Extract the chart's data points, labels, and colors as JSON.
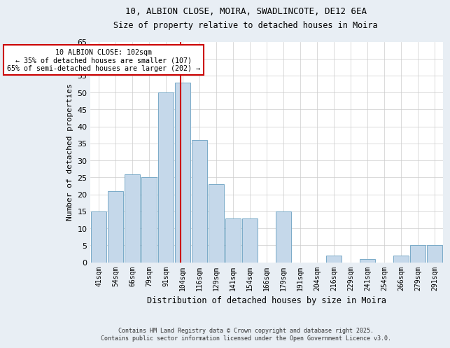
{
  "title_line1": "10, ALBION CLOSE, MOIRA, SWADLINCOTE, DE12 6EA",
  "title_line2": "Size of property relative to detached houses in Moira",
  "xlabel": "Distribution of detached houses by size in Moira",
  "ylabel": "Number of detached properties",
  "categories": [
    "41sqm",
    "54sqm",
    "66sqm",
    "79sqm",
    "91sqm",
    "104sqm",
    "116sqm",
    "129sqm",
    "141sqm",
    "154sqm",
    "166sqm",
    "179sqm",
    "191sqm",
    "204sqm",
    "216sqm",
    "229sqm",
    "241sqm",
    "254sqm",
    "266sqm",
    "279sqm",
    "291sqm"
  ],
  "values": [
    15,
    21,
    26,
    25,
    50,
    53,
    36,
    23,
    13,
    13,
    0,
    15,
    0,
    0,
    2,
    0,
    1,
    0,
    2,
    5,
    5
  ],
  "bar_color": "#c5d8ea",
  "bar_edge_color": "#7aaac8",
  "reference_line_x": 5.0,
  "reference_line_color": "#cc0000",
  "annotation_text": "10 ALBION CLOSE: 102sqm\n← 35% of detached houses are smaller (107)\n65% of semi-detached houses are larger (202) →",
  "annotation_box_color": "#ffffff",
  "annotation_box_edge_color": "#cc0000",
  "footer_line1": "Contains HM Land Registry data © Crown copyright and database right 2025.",
  "footer_line2": "Contains public sector information licensed under the Open Government Licence v3.0.",
  "ylim": [
    0,
    65
  ],
  "background_color": "#e8eef4",
  "plot_background": "#ffffff"
}
